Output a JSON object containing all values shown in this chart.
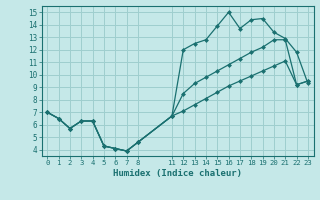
{
  "xlabel": "Humidex (Indice chaleur)",
  "bg_color": "#c5e8e8",
  "grid_color": "#9ecece",
  "line_color": "#1a7070",
  "xlim": [
    -0.5,
    23.5
  ],
  "ylim": [
    3.5,
    15.5
  ],
  "xticks": [
    0,
    1,
    2,
    3,
    4,
    5,
    6,
    7,
    8,
    11,
    12,
    13,
    14,
    15,
    16,
    17,
    18,
    19,
    20,
    21,
    22,
    23
  ],
  "yticks": [
    4,
    5,
    6,
    7,
    8,
    9,
    10,
    11,
    12,
    13,
    14,
    15
  ],
  "line1_x": [
    0,
    1,
    2,
    3,
    4,
    5,
    6,
    7,
    8,
    11,
    12,
    13,
    14,
    15,
    16,
    17,
    18,
    19,
    20,
    21,
    22,
    23
  ],
  "line1_y": [
    7.0,
    6.5,
    5.7,
    6.3,
    6.3,
    4.3,
    4.1,
    3.9,
    4.6,
    6.7,
    12.0,
    12.5,
    12.8,
    13.9,
    15.0,
    13.7,
    14.4,
    14.5,
    13.4,
    12.9,
    11.8,
    9.3
  ],
  "line2_x": [
    0,
    1,
    2,
    3,
    4,
    5,
    6,
    7,
    8,
    11,
    12,
    13,
    14,
    15,
    16,
    17,
    18,
    19,
    20,
    21,
    22,
    23
  ],
  "line2_y": [
    7.0,
    6.5,
    5.7,
    6.3,
    6.3,
    4.3,
    4.1,
    3.9,
    4.6,
    6.7,
    8.5,
    9.3,
    9.8,
    10.3,
    10.8,
    11.3,
    11.8,
    12.2,
    12.8,
    12.8,
    9.2,
    9.5
  ],
  "line3_x": [
    0,
    1,
    2,
    3,
    4,
    5,
    6,
    7,
    8,
    11,
    12,
    13,
    14,
    15,
    16,
    17,
    18,
    19,
    20,
    21,
    22,
    23
  ],
  "line3_y": [
    7.0,
    6.5,
    5.7,
    6.3,
    6.3,
    4.3,
    4.1,
    3.9,
    4.6,
    6.7,
    7.1,
    7.6,
    8.1,
    8.6,
    9.1,
    9.5,
    9.9,
    10.3,
    10.7,
    11.1,
    9.2,
    9.5
  ]
}
